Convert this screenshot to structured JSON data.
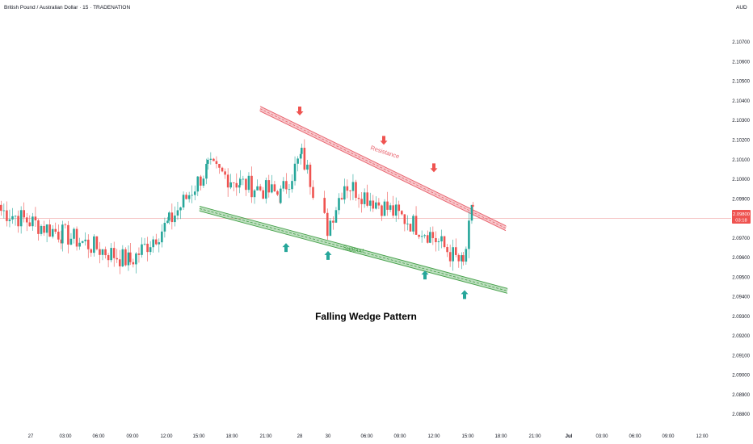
{
  "header": {
    "symbol_title": "British Pound / Australian Dollar · 15 · TRADENATION",
    "currency": "AUD"
  },
  "price_label": {
    "price": "2.09800",
    "countdown": "03:18"
  },
  "annotations": {
    "pattern_title": "Falling Wedge Pattern",
    "resistance_label": "Resistance",
    "support_label": "Support"
  },
  "colors": {
    "bull": "#26a69a",
    "bear": "#ef5350",
    "resistance": "#e8616c",
    "support": "#43a047",
    "price_line": "#f0a0a0",
    "pattern_text": "#000000"
  },
  "chart_data": {
    "type": "candlestick",
    "title": "British Pound / Australian Dollar · 15 · TRADENATION",
    "ylabel": "AUD",
    "ylim": [
      2.08768,
      2.10779
    ],
    "y_ticks": [
      "2.10700",
      "2.10600",
      "2.10500",
      "2.10400",
      "2.10300",
      "2.10200",
      "2.10100",
      "2.10000",
      "2.09900",
      "2.09800",
      "2.09700",
      "2.09600",
      "2.09500",
      "2.09400",
      "2.09300",
      "2.09200",
      "2.09100",
      "2.09000",
      "2.08900",
      "2.08800"
    ],
    "x_ticks": [
      {
        "label": "27",
        "bold": false
      },
      {
        "label": "03:00",
        "bold": false
      },
      {
        "label": "06:00",
        "bold": false
      },
      {
        "label": "09:00",
        "bold": false
      },
      {
        "label": "12:00",
        "bold": false
      },
      {
        "label": "15:00",
        "bold": false
      },
      {
        "label": "18:00",
        "bold": false
      },
      {
        "label": "21:00",
        "bold": false
      },
      {
        "label": "28",
        "bold": false
      },
      {
        "label": "30",
        "bold": false
      },
      {
        "label": "06:00",
        "bold": false
      },
      {
        "label": "09:00",
        "bold": false
      },
      {
        "label": "12:00",
        "bold": false
      },
      {
        "label": "15:00",
        "bold": false
      },
      {
        "label": "18:00",
        "bold": false
      },
      {
        "label": "21:00",
        "bold": false
      },
      {
        "label": "Jul",
        "bold": true
      },
      {
        "label": "03:00",
        "bold": false
      },
      {
        "label": "06:00",
        "bold": false
      },
      {
        "label": "09:00",
        "bold": false
      },
      {
        "label": "12:00",
        "bold": false
      }
    ],
    "current_price": 2.098,
    "trendlines": [
      {
        "name": "Resistance",
        "from": [
          0,
          2.1036
        ],
        "to": [
          1,
          2.0975
        ]
      },
      {
        "name": "Support",
        "from": [
          0,
          2.0985
        ],
        "to": [
          1,
          2.0943
        ]
      }
    ],
    "arrows": [
      {
        "direction": "down",
        "price": 2.1033
      },
      {
        "direction": "down",
        "price": 2.1018
      },
      {
        "direction": "down",
        "price": 2.1004
      },
      {
        "direction": "up",
        "price": 2.0967
      },
      {
        "direction": "up",
        "price": 2.0963
      },
      {
        "direction": "up",
        "price": 2.0953
      },
      {
        "direction": "up",
        "price": 2.0943
      }
    ],
    "key_closes": [
      {
        "time": "27 00:00",
        "close": 2.0984
      },
      {
        "time": "27 03:00",
        "close": 2.0972
      },
      {
        "time": "27 09:00",
        "close": 2.0958
      },
      {
        "time": "27 12:00",
        "close": 2.0978
      },
      {
        "time": "27 15:00",
        "close": 2.1006
      },
      {
        "time": "27 18:00",
        "close": 2.0998
      },
      {
        "time": "28 00:00",
        "close": 2.0992
      },
      {
        "time": "28 06:00",
        "close": 2.1012
      },
      {
        "time": "30 03:00",
        "close": 2.0975
      },
      {
        "time": "30 06:00",
        "close": 2.0998
      },
      {
        "time": "30 12:00",
        "close": 2.0972
      },
      {
        "time": "30 15:00",
        "close": 2.0956
      },
      {
        "time": "30 16:00",
        "close": 2.0986
      }
    ]
  }
}
